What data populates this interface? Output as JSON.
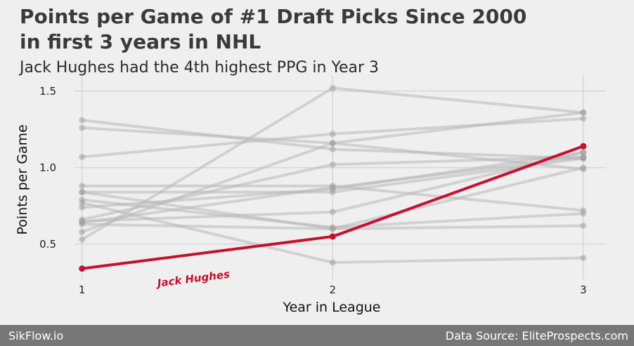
{
  "chart_data": {
    "type": "line",
    "title_line1": "Points per Game of #1 Draft Picks Since 2000",
    "title_line2": "in first 3 years in NHL",
    "subtitle": "Jack Hughes had the 4th highest PPG in Year 3",
    "xlabel": "Year in League",
    "ylabel": "Points per Game",
    "x": [
      1,
      2,
      3
    ],
    "x_ticks": [
      "1",
      "2",
      "3"
    ],
    "y_ticks": [
      "0.5",
      "1.0",
      "1.5"
    ],
    "ylim": [
      0.27,
      1.6
    ],
    "xlim": [
      0.97,
      3.09
    ],
    "grid": true,
    "background_series": [
      {
        "values": [
          0.53,
          1.52,
          1.36
        ]
      },
      {
        "values": [
          1.31,
          1.12,
          1.06
        ]
      },
      {
        "values": [
          1.26,
          1.16,
          1.36
        ]
      },
      {
        "values": [
          1.07,
          1.22,
          1.32
        ]
      },
      {
        "values": [
          0.58,
          1.16,
          0.99
        ]
      },
      {
        "values": [
          0.88,
          0.88,
          0.72
        ]
      },
      {
        "values": [
          0.84,
          0.84,
          1.06
        ]
      },
      {
        "values": [
          0.84,
          0.6,
          0.62
        ]
      },
      {
        "values": [
          0.79,
          0.61,
          0.7
        ]
      },
      {
        "values": [
          0.77,
          0.38,
          0.41
        ]
      },
      {
        "values": [
          0.66,
          1.02,
          1.07
        ]
      },
      {
        "values": [
          0.64,
          0.87,
          1.07
        ]
      },
      {
        "values": [
          0.65,
          0.71,
          1.1
        ]
      },
      {
        "values": [
          0.63,
          0.6,
          1.0
        ]
      },
      {
        "values": [
          0.74,
          0.86,
          1.1
        ]
      }
    ],
    "highlight_series": {
      "name": "Jack Hughes",
      "values": [
        0.34,
        0.55,
        1.14
      ],
      "color": "#c8102e"
    },
    "background_color": "#b8b8b8"
  },
  "footer": {
    "left": "SikFlow.io",
    "right": "Data Source: EliteProspects.com"
  }
}
